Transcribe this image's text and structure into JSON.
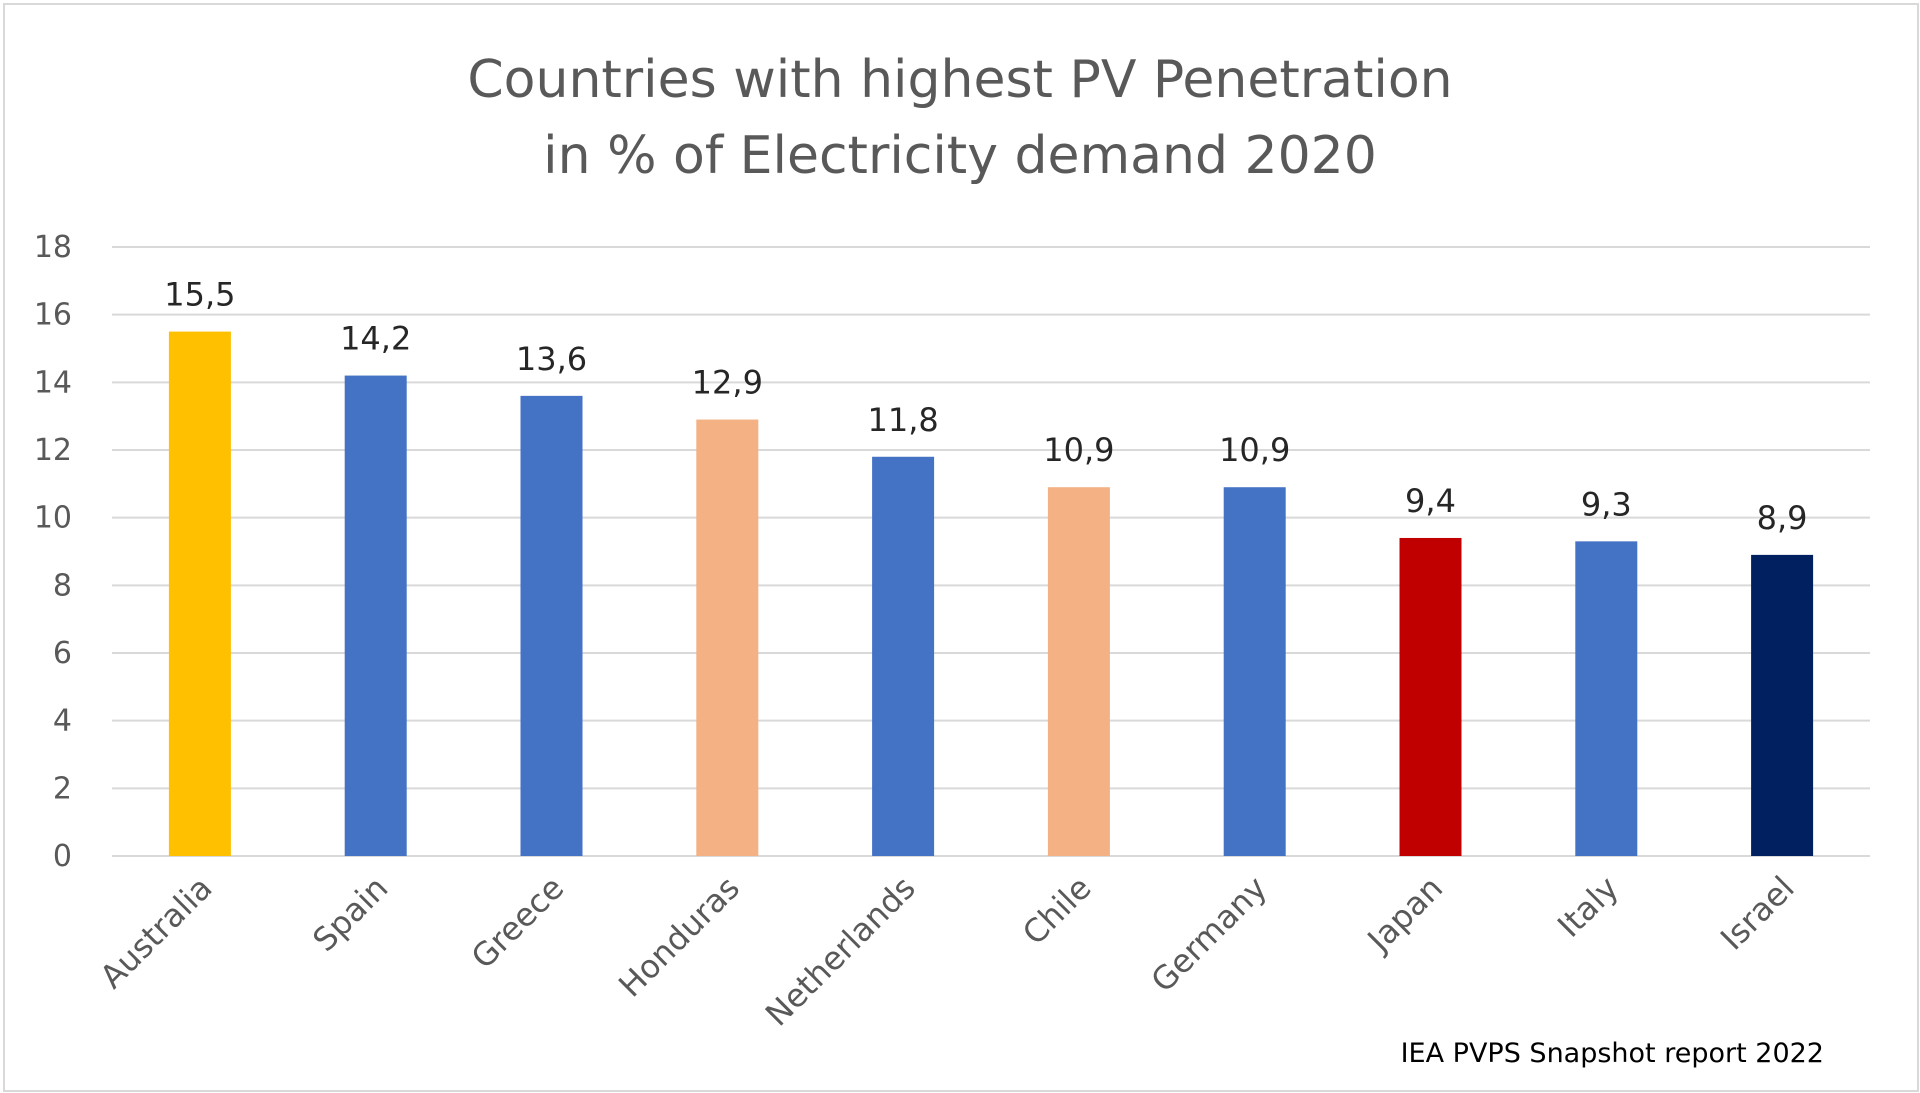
{
  "chart_data": {
    "type": "bar",
    "title": "Countries with highest PV Penetration",
    "subtitle": "in % of Electricity demand 2020",
    "categories": [
      "Australia",
      "Spain",
      "Greece",
      "Honduras",
      "Netherlands",
      "Chile",
      "Germany",
      "Japan",
      "Italy",
      "Israel"
    ],
    "values": [
      15.5,
      14.2,
      13.6,
      12.9,
      11.8,
      10.9,
      10.9,
      9.4,
      9.3,
      8.9
    ],
    "data_labels": [
      "15,5",
      "14,2",
      "13,6",
      "12,9",
      "11,8",
      "10,9",
      "10,9",
      "9,4",
      "9,3",
      "8,9"
    ],
    "bar_colors": [
      "#FFC000",
      "#4472C4",
      "#4472C4",
      "#F4B183",
      "#4472C4",
      "#F4B183",
      "#4472C4",
      "#C00000",
      "#4472C4",
      "#002060"
    ],
    "ylim": [
      0,
      18
    ],
    "yticks": [
      0,
      2,
      4,
      6,
      8,
      10,
      12,
      14,
      16,
      18
    ],
    "grid": true,
    "xlabel": "",
    "ylabel": "",
    "source": "IEA PVPS Snapshot report 2022"
  }
}
